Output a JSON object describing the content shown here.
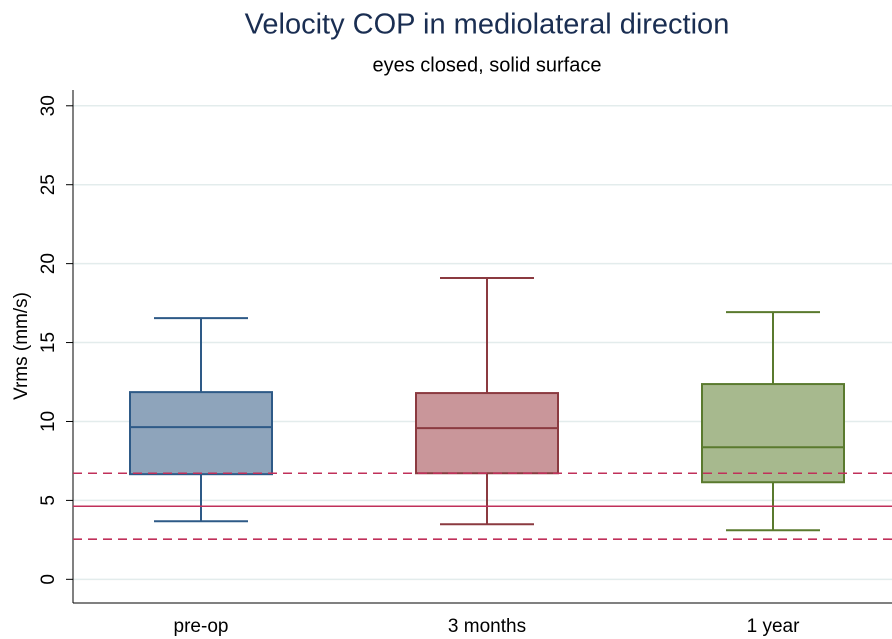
{
  "chart_data": {
    "type": "box",
    "title": "Velocity COP in mediolateral direction",
    "subtitle": "eyes closed, solid surface",
    "y_label": "Vrms (mm/s)",
    "categories": [
      "pre-op",
      "3 months",
      "1 year"
    ],
    "boxes": [
      {
        "min": 3.68,
        "q1": 6.66,
        "median": 9.64,
        "q3": 11.86,
        "max": 16.55,
        "color": "#2e5a87",
        "fill": "#8ea4bb"
      },
      {
        "min": 3.49,
        "q1": 6.72,
        "median": 9.58,
        "q3": 11.8,
        "max": 19.09,
        "color": "#8b3a40",
        "fill": "#c9969a"
      },
      {
        "min": 3.11,
        "q1": 6.15,
        "median": 8.37,
        "q3": 12.37,
        "max": 16.93,
        "color": "#5a7a2e",
        "fill": "#a7b98e"
      }
    ],
    "reference_lines": [
      {
        "value": 4.63,
        "style": "solid"
      },
      {
        "value": 6.72,
        "style": "dashed"
      },
      {
        "value": 2.54,
        "style": "dashed"
      }
    ],
    "reference_color": "#c0305a",
    "ylim": [
      -1.5,
      31
    ],
    "yticks": [
      0,
      5,
      10,
      15,
      20,
      25,
      30
    ],
    "grid": true
  }
}
